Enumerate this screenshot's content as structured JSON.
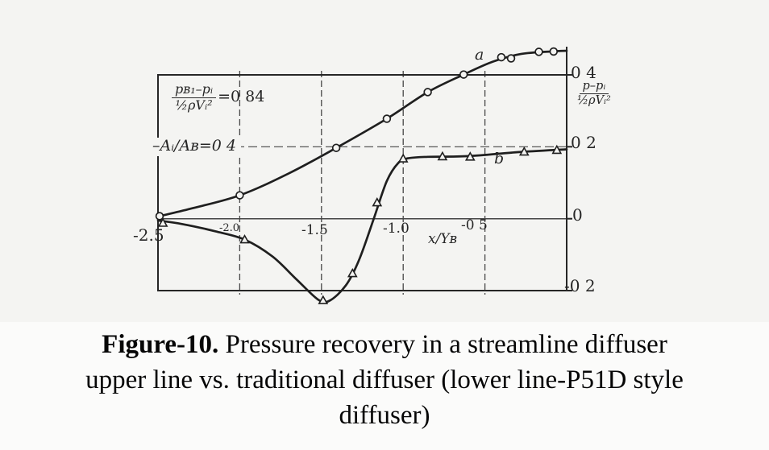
{
  "figure": {
    "ink_color": "#262626",
    "paper_color": "#f4f4f2",
    "annotations": {
      "eq1_numerator": "pʙ₁–pᵢ",
      "eq1_denominator": "½ρVᵢ²",
      "eq1_value": "=0 84",
      "eq2": "–Aᵢ/Aʙ=0 4",
      "curve_a_label": "a",
      "curve_b_label": "b"
    },
    "y_axis": {
      "fraction_numerator": "p–pᵢ",
      "fraction_denominator": "½ρVᵢ²",
      "tick_04": "0 4",
      "tick_02": "0 2",
      "tick_0": "0",
      "tick_neg02": "-0 2"
    },
    "x_axis": {
      "label": "x/Yʙ",
      "tick_m25": "-2.5",
      "tick_m20": "-2.0",
      "tick_m15": "-1.5",
      "tick_m10": "-1.0",
      "tick_m05": "-0 5"
    }
  },
  "caption": {
    "prefix": "Figure-10.",
    "line1_rest": " Pressure recovery in a streamline diffuser",
    "line2": "upper line vs. traditional diffuser (lower line-P51D style",
    "line3": "diffuser)"
  },
  "chart_data": {
    "type": "line",
    "title": "Pressure recovery in a streamline diffuser vs. traditional (P51D style) diffuser",
    "xlabel": "x/Y_B",
    "ylabel": "(p-p_i)/(1/2 rho V_i^2)",
    "xlim": [
      -2.5,
      0
    ],
    "ylim": [
      -0.2,
      0.4
    ],
    "x_ticks": [
      -2.5,
      -2.0,
      -1.5,
      -1.0,
      -0.5
    ],
    "y_ticks": [
      0.4,
      0.2,
      0,
      -0.2
    ],
    "grid": true,
    "annotations": [
      "(p_B1 - p_i)/(1/2 rho V_i^2) = 0.84",
      "A_i/A_B = 0.4"
    ],
    "series": [
      {
        "name": "a (streamline diffuser, upper line)",
        "marker": "circle",
        "points": [
          [
            -2.49,
            0.007
          ],
          [
            -2.0,
            0.065
          ],
          [
            -1.41,
            0.197
          ],
          [
            -1.1,
            0.278
          ],
          [
            -0.85,
            0.352
          ],
          [
            -0.63,
            0.401
          ],
          [
            -0.4,
            0.449
          ],
          [
            -0.34,
            0.446
          ],
          [
            -0.17,
            0.464
          ],
          [
            -0.08,
            0.465
          ]
        ],
        "line": [
          [
            -2.5,
            0.006
          ],
          [
            -2.3,
            0.028
          ],
          [
            -2.0,
            0.065
          ],
          [
            -1.7,
            0.126
          ],
          [
            -1.41,
            0.197
          ],
          [
            -1.1,
            0.278
          ],
          [
            -0.85,
            0.352
          ],
          [
            -0.63,
            0.401
          ],
          [
            -0.45,
            0.437
          ],
          [
            -0.28,
            0.458
          ],
          [
            -0.1,
            0.465
          ],
          [
            0,
            0.467
          ]
        ]
      },
      {
        "name": "b (traditional P51D style diffuser, lower line)",
        "marker": "triangle",
        "points": [
          [
            -2.47,
            -0.012
          ],
          [
            -1.97,
            -0.058
          ],
          [
            -1.49,
            -0.227
          ],
          [
            -1.31,
            -0.152
          ],
          [
            -1.16,
            0.045
          ],
          [
            -1.0,
            0.167
          ],
          [
            -0.76,
            0.173
          ],
          [
            -0.59,
            0.172
          ],
          [
            -0.26,
            0.186
          ],
          [
            -0.06,
            0.191
          ]
        ],
        "line": [
          [
            -2.5,
            -0.005
          ],
          [
            -2.35,
            -0.015
          ],
          [
            -2.15,
            -0.035
          ],
          [
            -1.97,
            -0.058
          ],
          [
            -1.8,
            -0.105
          ],
          [
            -1.65,
            -0.17
          ],
          [
            -1.52,
            -0.225
          ],
          [
            -1.45,
            -0.228
          ],
          [
            -1.35,
            -0.185
          ],
          [
            -1.27,
            -0.115
          ],
          [
            -1.18,
            0.0
          ],
          [
            -1.1,
            0.105
          ],
          [
            -1.03,
            0.155
          ],
          [
            -0.97,
            0.168
          ],
          [
            -0.85,
            0.172
          ],
          [
            -0.6,
            0.174
          ],
          [
            -0.3,
            0.185
          ],
          [
            0,
            0.193
          ]
        ]
      }
    ]
  }
}
